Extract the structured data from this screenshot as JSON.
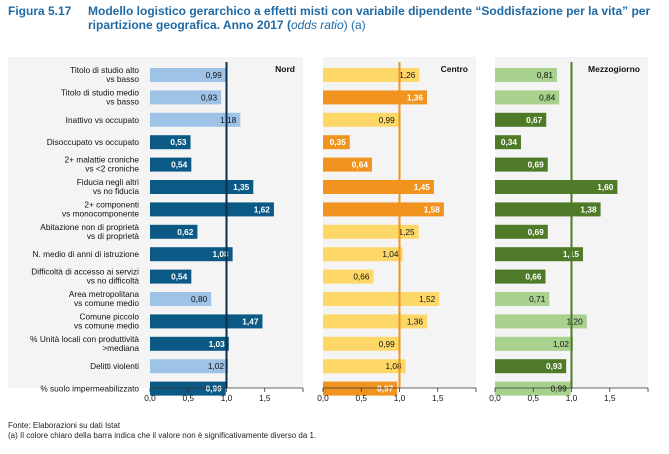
{
  "figure": {
    "label": "Figura 5.17",
    "title_main": "Modello logistico gerarchico a effetti misti con variabile dipendente “Soddisfazione per la vita” per ripartizione geografica. Anno 2017 (",
    "title_italic": "odds ratio",
    "title_tail": ") (a)"
  },
  "footer": {
    "source": "Fonte: Elaborazioni su dati Istat",
    "note": "(a) Il colore chiaro della barra indica che il valore non è significativamente diverso da 1."
  },
  "chart_data": {
    "type": "bar",
    "orientation": "horizontal",
    "reference_line": 1.0,
    "xlim": [
      0,
      2.0
    ],
    "xticks": [
      "0,0",
      "0,5",
      "1,0",
      "1,5"
    ],
    "xtick_values": [
      0,
      0.5,
      1.0,
      1.5
    ],
    "categories": [
      [
        "Titolo di studio alto",
        "vs basso"
      ],
      [
        "Titolo di studio medio",
        "vs basso"
      ],
      [
        "Inattivo vs occupato"
      ],
      [
        "Disoccupato vs occupato"
      ],
      [
        "2+ malattie croniche",
        "vs <2 croniche"
      ],
      [
        "Fiducia negli altri",
        "vs no fiducia"
      ],
      [
        "2+ componenti",
        "vs monocomponente"
      ],
      [
        "Abitazione non di proprietà",
        "vs di proprietà"
      ],
      [
        "N. medio di anni di istruzione"
      ],
      [
        "Difficoltà di accesso ai servizi",
        "vs no difficoltà"
      ],
      [
        "Area metropolitana",
        "vs comune medio"
      ],
      [
        "Comune piccolo",
        "vs comune medio"
      ],
      [
        "% Unità locali con produttività",
        ">mediana"
      ],
      [
        "Delitti violenti"
      ],
      [
        "% suolo impermeabilizzato"
      ]
    ],
    "series": [
      {
        "name": "Nord",
        "color_dark": "#0b5a86",
        "color_light": "#9fc3e7",
        "ref_color": "#0a2e4e",
        "values": [
          0.99,
          0.93,
          1.18,
          0.53,
          0.54,
          1.35,
          1.62,
          0.62,
          1.08,
          0.54,
          0.8,
          1.47,
          1.03,
          1.02,
          0.99
        ],
        "labels": [
          "0,99",
          "0,93",
          "1,18",
          "0,53",
          "0,54",
          "1,35",
          "1,62",
          "0,62",
          "1,08",
          "0,54",
          "0,80",
          "1,47",
          "1,03",
          "1,02",
          "0,99"
        ],
        "significant": [
          false,
          false,
          false,
          true,
          true,
          true,
          true,
          true,
          true,
          true,
          false,
          true,
          true,
          false,
          true
        ]
      },
      {
        "name": "Centro",
        "color_dark": "#f0941f",
        "color_light": "#fdd868",
        "ref_color": "#f0941f",
        "values": [
          1.26,
          1.36,
          0.99,
          0.35,
          0.64,
          1.45,
          1.58,
          1.25,
          1.04,
          0.66,
          1.52,
          1.36,
          0.99,
          1.08,
          0.97
        ],
        "labels": [
          "1,26",
          "1,36",
          "0,99",
          "0,35",
          "0,64",
          "1,45",
          "1,58",
          "1,25",
          "1,04",
          "0,66",
          "1,52",
          "1,36",
          "0,99",
          "1,08",
          "0,97"
        ],
        "significant": [
          false,
          true,
          false,
          true,
          true,
          true,
          true,
          false,
          false,
          false,
          false,
          false,
          false,
          false,
          true
        ]
      },
      {
        "name": "Mezzogiorno",
        "color_dark": "#4f7a28",
        "color_light": "#a9d18e",
        "ref_color": "#4f7a28",
        "values": [
          0.81,
          0.84,
          0.67,
          0.34,
          0.69,
          1.6,
          1.38,
          0.69,
          1.15,
          0.66,
          0.71,
          1.2,
          1.02,
          0.93,
          0.99
        ],
        "labels": [
          "0,81",
          "0,84",
          "0,67",
          "0,34",
          "0,69",
          "1,60",
          "1,38",
          "0,69",
          "1,15",
          "0,66",
          "0,71",
          "1,20",
          "1,02",
          "0,93",
          "0,99"
        ],
        "significant": [
          false,
          false,
          true,
          true,
          true,
          true,
          true,
          true,
          true,
          true,
          false,
          false,
          false,
          true,
          false
        ]
      }
    ]
  }
}
